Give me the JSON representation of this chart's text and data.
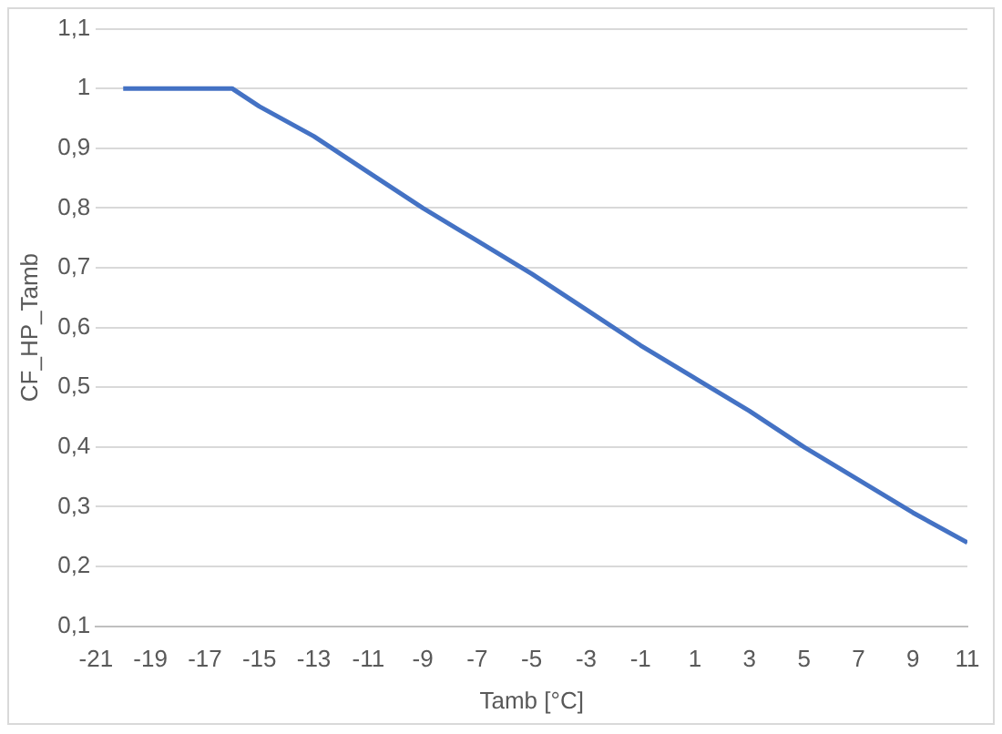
{
  "chart_data": {
    "type": "line",
    "xlabel": "Tamb [°C]",
    "ylabel": "CF_HP_Tamb",
    "x": [
      -20,
      -16,
      -15,
      -13,
      -11,
      -9,
      -7,
      -5,
      -3,
      -1,
      1,
      3,
      5,
      7,
      9,
      11
    ],
    "series": [
      {
        "color": "#4472c4",
        "values": [
          1,
          1,
          0.97,
          0.92,
          0.86,
          0.8,
          0.745,
          0.69,
          0.63,
          0.57,
          0.515,
          0.46,
          0.4,
          0.345,
          0.29,
          0.24
        ]
      }
    ],
    "xlim": [
      -21,
      11
    ],
    "xticks": [
      -21,
      -19,
      -17,
      -15,
      -13,
      -11,
      -9,
      -7,
      -5,
      -3,
      -1,
      1,
      3,
      5,
      7,
      9,
      11
    ],
    "ylim": [
      0.1,
      1.1
    ],
    "yticks": [
      {
        "value": 0.1,
        "label": "0,1"
      },
      {
        "value": 0.2,
        "label": "0,2"
      },
      {
        "value": 0.3,
        "label": "0,3"
      },
      {
        "value": 0.4,
        "label": "0,4"
      },
      {
        "value": 0.5,
        "label": "0,5"
      },
      {
        "value": 0.6,
        "label": "0,6"
      },
      {
        "value": 0.7,
        "label": "0,7"
      },
      {
        "value": 0.8,
        "label": "0,8"
      },
      {
        "value": 0.9,
        "label": "0,9"
      },
      {
        "value": 1,
        "label": "1"
      },
      {
        "value": 1.1,
        "label": "1,1"
      }
    ],
    "grid": "y",
    "legend": false,
    "marker": "none",
    "line_style": "solid"
  }
}
